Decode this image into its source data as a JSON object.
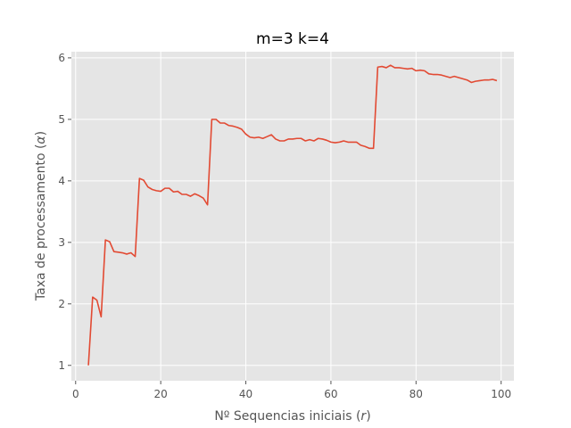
{
  "chart_data": {
    "type": "line",
    "title": "m=3 k=4",
    "xlabel_prefix": "Nº Sequencias iniciais (",
    "xlabel_symbol": "r",
    "xlabel_suffix": ")",
    "ylabel_prefix": "Taxa de processamento (",
    "ylabel_symbol": "α",
    "ylabel_suffix": ")",
    "xlim": [
      -1,
      103
    ],
    "ylim": [
      0.75,
      6.1
    ],
    "xticks": [
      0,
      20,
      40,
      60,
      80,
      100
    ],
    "yticks": [
      1,
      2,
      3,
      4,
      5,
      6
    ],
    "grid": true,
    "colors": {
      "plot_bg": "#e5e5e5",
      "line": "#e24a33",
      "grid": "#ffffff"
    },
    "series": [
      {
        "x": [
          3,
          4,
          5,
          6,
          7,
          8,
          9,
          10,
          11,
          12,
          13,
          14,
          15,
          16,
          17,
          18,
          19,
          20,
          21,
          22,
          23,
          24,
          25,
          26,
          27,
          28,
          29,
          30,
          31,
          32,
          33,
          34,
          35,
          36,
          37,
          38,
          39,
          40,
          41,
          42,
          43,
          44,
          45,
          46,
          47,
          48,
          49,
          50,
          51,
          52,
          53,
          54,
          55,
          56,
          57,
          58,
          59,
          60,
          61,
          62,
          63,
          64,
          65,
          66,
          67,
          68,
          69,
          70,
          71,
          72,
          73,
          74,
          75,
          76,
          77,
          78,
          79,
          80,
          81,
          82,
          83,
          84,
          85,
          86,
          87,
          88,
          89,
          90,
          91,
          92,
          93,
          94,
          95,
          96,
          97,
          98,
          99
        ],
        "y": [
          1.0,
          2.11,
          2.06,
          1.79,
          3.04,
          3.01,
          2.85,
          2.84,
          2.83,
          2.81,
          2.83,
          2.77,
          4.04,
          4.01,
          3.9,
          3.86,
          3.84,
          3.83,
          3.88,
          3.88,
          3.82,
          3.83,
          3.78,
          3.78,
          3.75,
          3.79,
          3.76,
          3.72,
          3.61,
          5.0,
          5.0,
          4.94,
          4.94,
          4.9,
          4.89,
          4.87,
          4.84,
          4.76,
          4.71,
          4.7,
          4.71,
          4.69,
          4.72,
          4.75,
          4.68,
          4.65,
          4.65,
          4.68,
          4.68,
          4.69,
          4.69,
          4.65,
          4.67,
          4.65,
          4.69,
          4.68,
          4.66,
          4.63,
          4.62,
          4.63,
          4.65,
          4.63,
          4.63,
          4.63,
          4.58,
          4.56,
          4.53,
          4.53,
          5.85,
          5.86,
          5.84,
          5.88,
          5.84,
          5.84,
          5.83,
          5.82,
          5.83,
          5.79,
          5.8,
          5.79,
          5.74,
          5.73,
          5.73,
          5.72,
          5.7,
          5.68,
          5.7,
          5.68,
          5.66,
          5.64,
          5.6,
          5.62,
          5.63,
          5.64,
          5.64,
          5.65,
          5.63
        ]
      }
    ]
  }
}
